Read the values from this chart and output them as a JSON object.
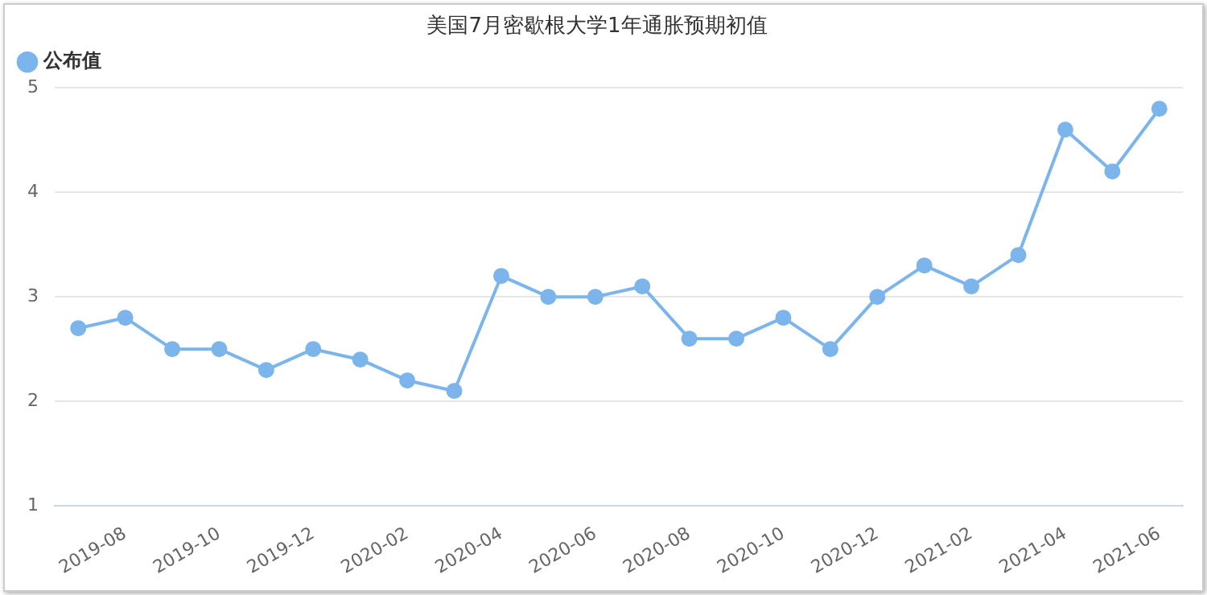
{
  "chart_data": {
    "type": "line",
    "title": "美国7月密歇根大学1年通胀预期初值",
    "categories": [
      null,
      "2019-08",
      null,
      "2019-10",
      null,
      "2019-12",
      null,
      "2020-02",
      null,
      "2020-04",
      null,
      "2020-06",
      null,
      "2020-08",
      null,
      "2020-10",
      null,
      "2020-12",
      null,
      "2021-02",
      null,
      "2021-04",
      null,
      "2021-06"
    ],
    "series": [
      {
        "name": "公布值",
        "color": "#7cb5ec",
        "values": [
          2.7,
          2.8,
          2.5,
          2.5,
          2.3,
          2.5,
          2.4,
          2.2,
          2.1,
          3.2,
          3.0,
          3.0,
          3.1,
          2.6,
          2.6,
          2.8,
          2.5,
          3.0,
          3.3,
          3.1,
          3.4,
          4.6,
          4.2,
          4.8
        ]
      }
    ],
    "ylim": [
      1,
      5
    ],
    "yticks": [
      1,
      2,
      3,
      4,
      5
    ],
    "grid": "y",
    "legend": "top left",
    "marker": "circle",
    "line_style": "solid"
  }
}
